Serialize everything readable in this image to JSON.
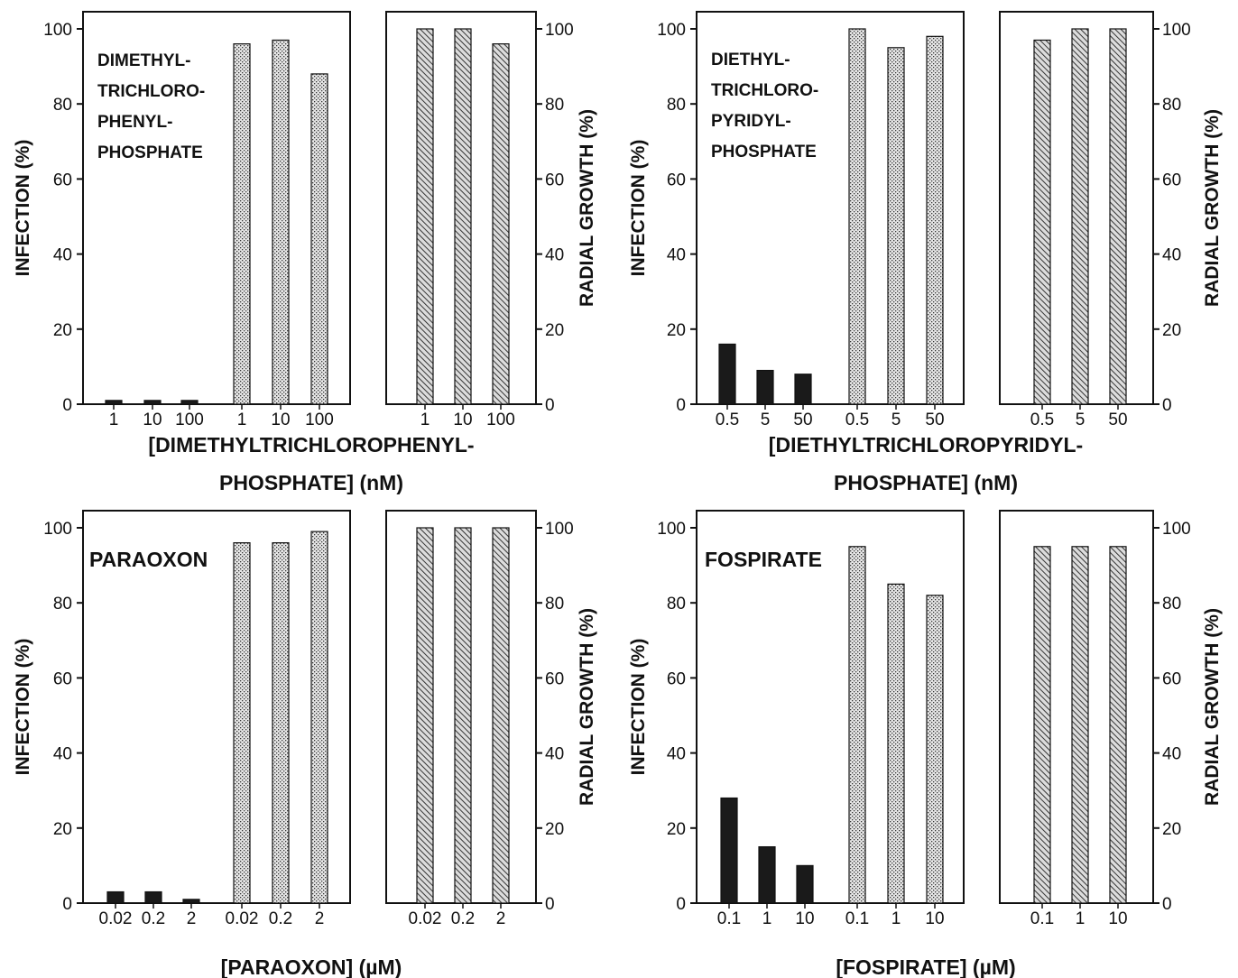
{
  "chart_data": [
    {
      "type": "bar",
      "annotation": [
        "DIMETHYL-",
        "TRICHLORO-",
        "PHENYL-",
        "PHOSPHATE"
      ],
      "xlabel": [
        "[DIMETHYLTRICHLOROPHENYL-",
        "PHOSPHATE] (nM)"
      ],
      "ylabel_left": "INFECTION (%)",
      "ylabel_right": "RADIAL GROWTH (%)",
      "ylim": [
        0,
        100
      ],
      "yticks": [
        "0",
        "20",
        "40",
        "60",
        "80",
        "100"
      ],
      "infection_panel": {
        "groups": [
          {
            "fill": "solid",
            "categories": [
              "1",
              "10",
              "100"
            ],
            "values": [
              1,
              1,
              1
            ]
          },
          {
            "fill": "stipple",
            "categories": [
              "1",
              "10",
              "100"
            ],
            "values": [
              96,
              97,
              88
            ]
          }
        ]
      },
      "growth_panel": {
        "groups": [
          {
            "fill": "hatched",
            "categories": [
              "1",
              "10",
              "100"
            ],
            "values": [
              100,
              100,
              96
            ]
          }
        ]
      }
    },
    {
      "type": "bar",
      "annotation": [
        "DIETHYL-",
        "TRICHLORO-",
        "PYRIDYL-",
        "PHOSPHATE"
      ],
      "xlabel": [
        "[DIETHYLTRICHLOROPYRIDYL-",
        "PHOSPHATE] (nM)"
      ],
      "ylabel_left": "INFECTION (%)",
      "ylabel_right": "RADIAL GROWTH (%)",
      "ylim": [
        0,
        100
      ],
      "yticks": [
        "0",
        "20",
        "40",
        "60",
        "80",
        "100"
      ],
      "infection_panel": {
        "groups": [
          {
            "fill": "solid",
            "categories": [
              "0.5",
              "5",
              "50"
            ],
            "values": [
              16,
              9,
              8
            ]
          },
          {
            "fill": "stipple",
            "categories": [
              "0.5",
              "5",
              "50"
            ],
            "values": [
              100,
              95,
              98
            ]
          }
        ]
      },
      "growth_panel": {
        "groups": [
          {
            "fill": "hatched",
            "categories": [
              "0.5",
              "5",
              "50"
            ],
            "values": [
              97,
              100,
              100
            ]
          }
        ]
      }
    },
    {
      "type": "bar",
      "annotation": [
        "PARAOXON"
      ],
      "xlabel": [
        "[PARAOXON] (µM)"
      ],
      "ylabel_left": "INFECTION (%)",
      "ylabel_right": "RADIAL GROWTH (%)",
      "ylim": [
        0,
        100
      ],
      "yticks": [
        "0",
        "20",
        "40",
        "60",
        "80",
        "100"
      ],
      "infection_panel": {
        "groups": [
          {
            "fill": "solid",
            "categories": [
              "0.02",
              "0.2",
              "2"
            ],
            "values": [
              3,
              3,
              1
            ]
          },
          {
            "fill": "stipple",
            "categories": [
              "0.02",
              "0.2",
              "2"
            ],
            "values": [
              96,
              96,
              99
            ]
          }
        ]
      },
      "growth_panel": {
        "groups": [
          {
            "fill": "hatched",
            "categories": [
              "0.02",
              "0.2",
              "2"
            ],
            "values": [
              100,
              100,
              100
            ]
          }
        ]
      }
    },
    {
      "type": "bar",
      "annotation": [
        "FOSPIRATE"
      ],
      "xlabel": [
        "[FOSPIRATE] (µM)"
      ],
      "ylabel_left": "INFECTION (%)",
      "ylabel_right": "RADIAL GROWTH (%)",
      "ylim": [
        0,
        100
      ],
      "yticks": [
        "0",
        "20",
        "40",
        "60",
        "80",
        "100"
      ],
      "infection_panel": {
        "groups": [
          {
            "fill": "solid",
            "categories": [
              "0.1",
              "1",
              "10"
            ],
            "values": [
              28,
              15,
              10
            ]
          },
          {
            "fill": "stipple",
            "categories": [
              "0.1",
              "1",
              "10"
            ],
            "values": [
              95,
              85,
              82
            ]
          }
        ]
      },
      "growth_panel": {
        "groups": [
          {
            "fill": "hatched",
            "categories": [
              "0.1",
              "1",
              "10"
            ],
            "values": [
              95,
              95,
              95
            ]
          }
        ]
      }
    }
  ]
}
